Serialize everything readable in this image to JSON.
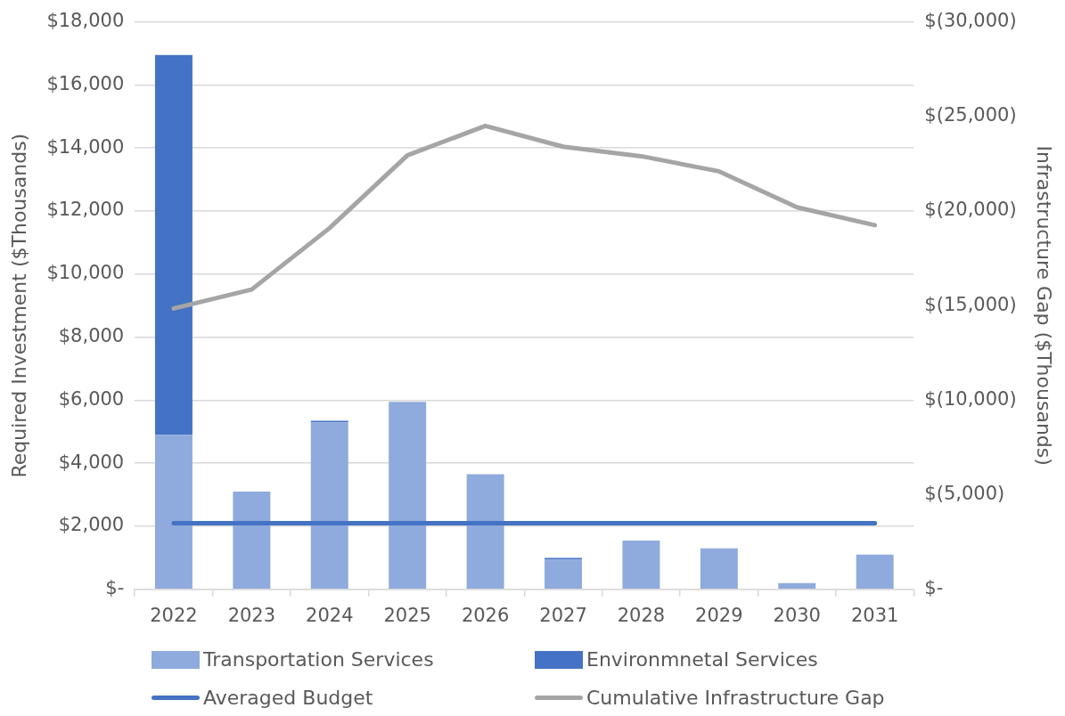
{
  "chart_data": {
    "type": "bar",
    "stacked": true,
    "legend": "bottom",
    "grid": "y",
    "categories": [
      "2022",
      "2023",
      "2024",
      "2025",
      "2026",
      "2027",
      "2028",
      "2029",
      "2030",
      "2031"
    ],
    "ylabel": "Required Investment ($Thousands)",
    "y2label": "Infrastructure Gap ($Thousands)",
    "ylim": [
      0,
      18000
    ],
    "yticks": [
      {
        "value": 0,
        "label": "$-"
      },
      {
        "value": 2000,
        "label": "$2,000"
      },
      {
        "value": 4000,
        "label": "$4,000"
      },
      {
        "value": 6000,
        "label": "$6,000"
      },
      {
        "value": 8000,
        "label": "$8,000"
      },
      {
        "value": 10000,
        "label": "$10,000"
      },
      {
        "value": 12000,
        "label": "$12,000"
      },
      {
        "value": 14000,
        "label": "$14,000"
      },
      {
        "value": 16000,
        "label": "$16,000"
      },
      {
        "value": 18000,
        "label": "$18,000"
      }
    ],
    "y2lim": [
      0,
      -30000
    ],
    "y2ticks": [
      {
        "value": 0,
        "label": "$-"
      },
      {
        "value": -5000,
        "label": "$(5,000)"
      },
      {
        "value": -10000,
        "label": "$(10,000)"
      },
      {
        "value": -15000,
        "label": "$(15,000)"
      },
      {
        "value": -20000,
        "label": "$(20,000)"
      },
      {
        "value": -25000,
        "label": "$(25,000)"
      },
      {
        "value": -30000,
        "label": "$(30,000)"
      }
    ],
    "series": [
      {
        "name": "Transportation Services",
        "color": "#8faadc",
        "values": [
          4900,
          3100,
          5300,
          5950,
          3650,
          950,
          1550,
          1300,
          200,
          1100
        ]
      },
      {
        "name": "Environmnetal Services",
        "color": "#4472c4",
        "values": [
          12050,
          0,
          50,
          0,
          0,
          50,
          0,
          0,
          0,
          0
        ]
      },
      {
        "name": "Averaged Budget",
        "type": "line",
        "color": "#4472c4",
        "values": [
          2100,
          2100,
          2100,
          2100,
          2100,
          2100,
          2100,
          2100,
          2100,
          2100
        ]
      },
      {
        "name": "Cumulative Infrastructure Gap",
        "type": "line",
        "axis": "y2",
        "color": "#a5a5a5",
        "values": [
          -14850,
          -15850,
          -19100,
          -22950,
          -24500,
          -23400,
          -22900,
          -22100,
          -20200,
          -19250
        ]
      }
    ]
  }
}
